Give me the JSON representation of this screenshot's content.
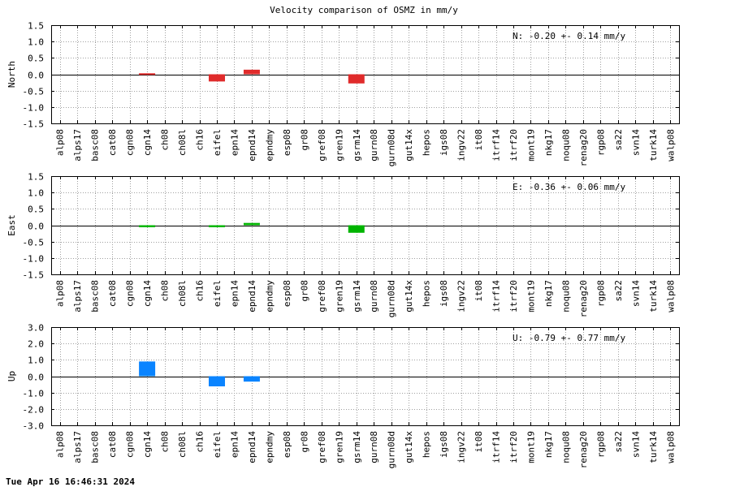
{
  "chart_data": {
    "title": "Velocity comparison of OSMZ in mm/y",
    "type": "bar",
    "categories": [
      "alp08",
      "alps17",
      "basc08",
      "cat08",
      "cgn08",
      "cgn14",
      "ch08",
      "ch08l",
      "ch16",
      "eifel",
      "epn14",
      "epnd14",
      "epndmy",
      "esp08",
      "gr08",
      "gref08",
      "gren19",
      "gsrm14",
      "gurn08",
      "gurn08d",
      "gut14x",
      "hepos",
      "igs08",
      "ingv22",
      "it08",
      "itrf14",
      "itrf20",
      "mont19",
      "nkg17",
      "noqu08",
      "renag20",
      "rgp08",
      "sa22",
      "svn14",
      "turk14",
      "walp08"
    ],
    "panels": [
      {
        "ylabel": "North",
        "color": "#e02b2b",
        "ylim": [
          -1.5,
          1.5
        ],
        "yticks": [
          "1.5",
          "1.0",
          "0.5",
          "0.0",
          "-0.5",
          "-1.0",
          "-1.5"
        ],
        "ytick_values": [
          1.5,
          1.0,
          0.5,
          0.0,
          -0.5,
          -1.0,
          -1.5
        ],
        "values": [
          null,
          null,
          null,
          null,
          null,
          0.03,
          null,
          null,
          null,
          -0.22,
          null,
          0.14,
          null,
          null,
          null,
          null,
          null,
          -0.28,
          null,
          null,
          null,
          null,
          null,
          null,
          null,
          null,
          null,
          null,
          null,
          null,
          null,
          null,
          null,
          null,
          null,
          null
        ],
        "annotation": "N:  -0.20 +-  0.14 mm/y"
      },
      {
        "ylabel": "East",
        "color": "#00b400",
        "ylim": [
          -1.5,
          1.5
        ],
        "yticks": [
          "1.5",
          "1.0",
          "0.5",
          "0.0",
          "-0.5",
          "-1.0",
          "-1.5"
        ],
        "ytick_values": [
          1.5,
          1.0,
          0.5,
          0.0,
          -0.5,
          -1.0,
          -1.5
        ],
        "values": [
          null,
          null,
          null,
          null,
          null,
          -0.06,
          null,
          null,
          null,
          -0.06,
          null,
          0.07,
          null,
          null,
          null,
          null,
          null,
          -0.23,
          null,
          null,
          null,
          null,
          null,
          null,
          null,
          null,
          null,
          null,
          null,
          null,
          null,
          null,
          null,
          null,
          null,
          null
        ],
        "annotation": "E:  -0.36 +-  0.06 mm/y"
      },
      {
        "ylabel": "Up",
        "color": "#0a84ff",
        "ylim": [
          -3.0,
          3.0
        ],
        "yticks": [
          "3.0",
          "2.0",
          "1.0",
          "0.0",
          "-1.0",
          "-2.0",
          "-3.0"
        ],
        "ytick_values": [
          3.0,
          2.0,
          1.0,
          0.0,
          -1.0,
          -2.0,
          -3.0
        ],
        "values": [
          null,
          null,
          null,
          null,
          null,
          0.9,
          null,
          null,
          null,
          -0.62,
          null,
          -0.33,
          null,
          null,
          null,
          null,
          null,
          null,
          null,
          null,
          null,
          null,
          null,
          null,
          null,
          null,
          null,
          null,
          null,
          null,
          null,
          null,
          null,
          null,
          null,
          null
        ],
        "annotation": "U:  -0.79 +-  0.77 mm/y"
      }
    ]
  },
  "footer": "Tue Apr 16 16:46:31 2024"
}
